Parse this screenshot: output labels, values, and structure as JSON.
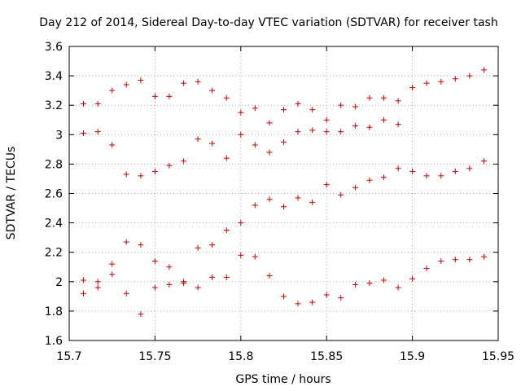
{
  "chart_data": {
    "type": "scatter",
    "title": "Day 212 of 2014, Sidereal Day-to-day VTEC variation (SDTVAR) for receiver tash",
    "xlabel": "GPS time / hours",
    "ylabel": "SDTVAR / TECUs",
    "xlim": [
      15.7,
      15.95
    ],
    "ylim": [
      1.6,
      3.6
    ],
    "x_ticks": [
      15.7,
      15.75,
      15.8,
      15.85,
      15.9,
      15.95
    ],
    "x_tick_labels": [
      "15.7",
      "15.75",
      "15.8",
      "15.85",
      "15.9",
      "15.95"
    ],
    "y_ticks": [
      1.6,
      1.8,
      2,
      2.2,
      2.4,
      2.6,
      2.8,
      3,
      3.2,
      3.4,
      3.6
    ],
    "y_tick_labels": [
      "1.6",
      "1.8",
      "2",
      "2.2",
      "2.4",
      "2.6",
      "2.8",
      "3",
      "3.2",
      "3.4",
      "3.6"
    ],
    "grid": true,
    "marker": "+",
    "marker_color": "#cc0000",
    "series": [
      {
        "name": "SDTVAR",
        "points": [
          [
            15.7083,
            3.21
          ],
          [
            15.7083,
            3.01
          ],
          [
            15.7083,
            2.01
          ],
          [
            15.7083,
            1.92
          ],
          [
            15.7167,
            3.21
          ],
          [
            15.7167,
            3.02
          ],
          [
            15.7167,
            2.0
          ],
          [
            15.7167,
            1.96
          ],
          [
            15.725,
            3.3
          ],
          [
            15.725,
            2.93
          ],
          [
            15.725,
            2.12
          ],
          [
            15.725,
            2.05
          ],
          [
            15.7333,
            3.34
          ],
          [
            15.7333,
            2.73
          ],
          [
            15.7333,
            2.27
          ],
          [
            15.7333,
            1.92
          ],
          [
            15.7417,
            3.37
          ],
          [
            15.7417,
            2.72
          ],
          [
            15.7417,
            2.25
          ],
          [
            15.7417,
            1.78
          ],
          [
            15.75,
            3.26
          ],
          [
            15.75,
            2.75
          ],
          [
            15.75,
            2.14
          ],
          [
            15.75,
            1.96
          ],
          [
            15.7583,
            3.26
          ],
          [
            15.7583,
            2.79
          ],
          [
            15.7583,
            2.1
          ],
          [
            15.7583,
            1.98
          ],
          [
            15.7667,
            3.35
          ],
          [
            15.7667,
            2.82
          ],
          [
            15.7667,
            2.0
          ],
          [
            15.7667,
            1.99
          ],
          [
            15.775,
            3.36
          ],
          [
            15.775,
            2.97
          ],
          [
            15.775,
            2.23
          ],
          [
            15.775,
            1.96
          ],
          [
            15.7833,
            3.3
          ],
          [
            15.7833,
            2.94
          ],
          [
            15.7833,
            2.25
          ],
          [
            15.7833,
            2.03
          ],
          [
            15.7917,
            3.25
          ],
          [
            15.7917,
            2.84
          ],
          [
            15.7917,
            2.35
          ],
          [
            15.7917,
            2.03
          ],
          [
            15.8,
            3.15
          ],
          [
            15.8,
            3.0
          ],
          [
            15.8,
            2.4
          ],
          [
            15.8,
            2.18
          ],
          [
            15.8083,
            3.18
          ],
          [
            15.8083,
            2.93
          ],
          [
            15.8083,
            2.52
          ],
          [
            15.8083,
            2.17
          ],
          [
            15.8167,
            3.08
          ],
          [
            15.8167,
            2.88
          ],
          [
            15.8167,
            2.56
          ],
          [
            15.8167,
            2.04
          ],
          [
            15.825,
            3.17
          ],
          [
            15.825,
            2.95
          ],
          [
            15.825,
            2.51
          ],
          [
            15.825,
            1.9
          ],
          [
            15.8333,
            3.21
          ],
          [
            15.8333,
            3.02
          ],
          [
            15.8333,
            2.57
          ],
          [
            15.8333,
            1.85
          ],
          [
            15.8417,
            3.17
          ],
          [
            15.8417,
            3.03
          ],
          [
            15.8417,
            2.54
          ],
          [
            15.8417,
            1.86
          ],
          [
            15.85,
            3.1
          ],
          [
            15.85,
            3.02
          ],
          [
            15.85,
            2.66
          ],
          [
            15.85,
            1.91
          ],
          [
            15.8583,
            3.2
          ],
          [
            15.8583,
            3.02
          ],
          [
            15.8583,
            2.59
          ],
          [
            15.8583,
            1.89
          ],
          [
            15.8667,
            3.19
          ],
          [
            15.8667,
            3.06
          ],
          [
            15.8667,
            2.64
          ],
          [
            15.8667,
            1.98
          ],
          [
            15.875,
            3.25
          ],
          [
            15.875,
            3.05
          ],
          [
            15.875,
            2.69
          ],
          [
            15.875,
            1.99
          ],
          [
            15.8833,
            3.25
          ],
          [
            15.8833,
            3.1
          ],
          [
            15.8833,
            2.71
          ],
          [
            15.8833,
            2.01
          ],
          [
            15.8917,
            3.23
          ],
          [
            15.8917,
            3.07
          ],
          [
            15.8917,
            2.77
          ],
          [
            15.8917,
            1.96
          ],
          [
            15.9,
            3.32
          ],
          [
            15.9,
            2.75
          ],
          [
            15.9,
            2.02
          ],
          [
            15.9083,
            3.35
          ],
          [
            15.9083,
            2.72
          ],
          [
            15.9083,
            2.09
          ],
          [
            15.9167,
            3.36
          ],
          [
            15.9167,
            2.72
          ],
          [
            15.9167,
            2.14
          ],
          [
            15.925,
            3.38
          ],
          [
            15.925,
            2.75
          ],
          [
            15.925,
            2.15
          ],
          [
            15.9333,
            3.4
          ],
          [
            15.9333,
            2.77
          ],
          [
            15.9333,
            2.15
          ],
          [
            15.9417,
            3.44
          ],
          [
            15.9417,
            2.82
          ],
          [
            15.9417,
            2.17
          ]
        ]
      }
    ]
  }
}
